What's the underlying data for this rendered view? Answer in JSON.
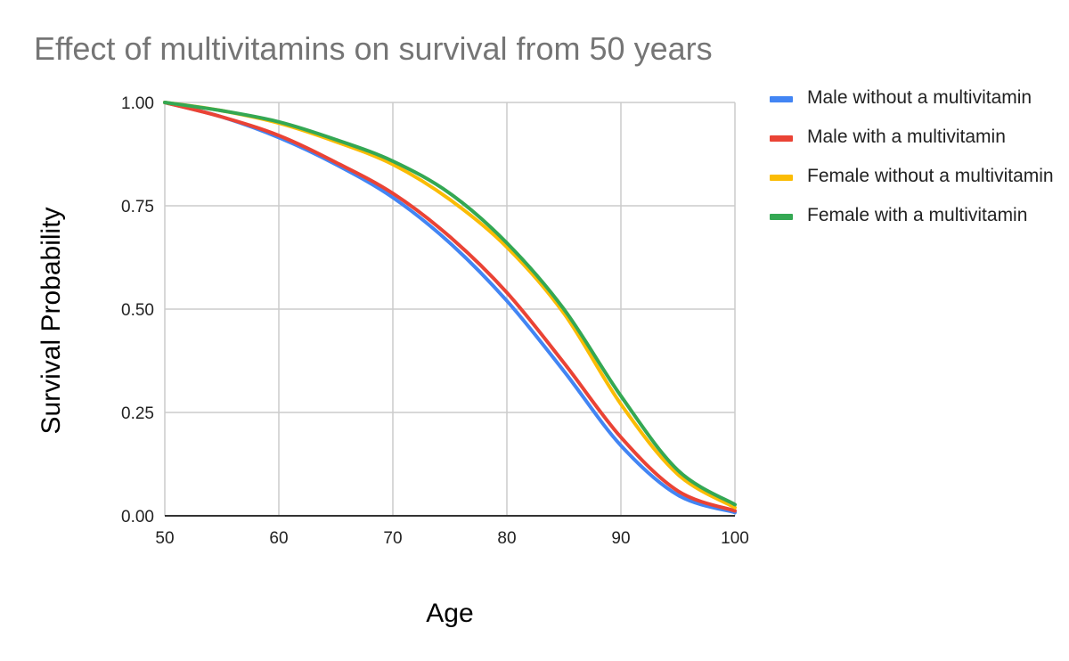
{
  "chart_data": {
    "type": "line",
    "title": "Effect of multivitamins on survival from 50 years",
    "xlabel": "Age",
    "ylabel": "Survival Probability",
    "xlim": [
      50,
      100
    ],
    "ylim": [
      0,
      1
    ],
    "x_ticks": [
      "50",
      "60",
      "70",
      "80",
      "90",
      "100"
    ],
    "y_ticks": [
      "0.00",
      "0.25",
      "0.50",
      "0.75",
      "1.00"
    ],
    "grid": true,
    "legend_position": "right",
    "x": [
      50,
      55,
      60,
      65,
      70,
      75,
      80,
      85,
      90,
      95,
      100
    ],
    "series": [
      {
        "name": "Male without a multivitamin",
        "color": "#4285F4",
        "values": [
          1.0,
          0.965,
          0.915,
          0.85,
          0.77,
          0.66,
          0.52,
          0.35,
          0.17,
          0.05,
          0.008
        ]
      },
      {
        "name": "Male with a multivitamin",
        "color": "#EA4335",
        "values": [
          1.0,
          0.965,
          0.92,
          0.855,
          0.78,
          0.675,
          0.54,
          0.37,
          0.19,
          0.06,
          0.012
        ]
      },
      {
        "name": "Female without a multivitamin",
        "color": "#FBBC04",
        "values": [
          1.0,
          0.98,
          0.95,
          0.905,
          0.85,
          0.765,
          0.65,
          0.49,
          0.27,
          0.1,
          0.02
        ]
      },
      {
        "name": "Female with a multivitamin",
        "color": "#34A853",
        "values": [
          1.0,
          0.98,
          0.953,
          0.91,
          0.858,
          0.78,
          0.66,
          0.5,
          0.29,
          0.11,
          0.027
        ]
      }
    ]
  }
}
